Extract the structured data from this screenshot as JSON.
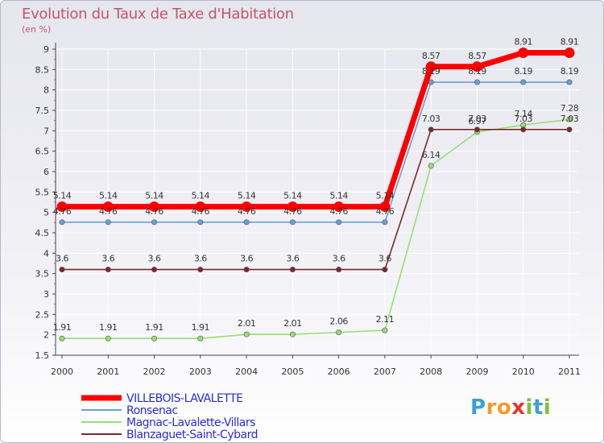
{
  "title": "Evolution du Taux de Taxe d'Habitation",
  "unit_label": "(en %)",
  "logo": {
    "text": "Proxiti",
    "letters": [
      "P",
      "r",
      "o",
      "x",
      "i",
      "t",
      "i"
    ],
    "colors": [
      "#3aa0d8",
      "#f39a2a",
      "#f39a2a",
      "#e8342a",
      "#7bbf3c",
      "#3aa0d8",
      "#7bbf3c"
    ]
  },
  "colors": {
    "villebois": "#ff0000",
    "ronsenac": "#6aa0d0",
    "magnac": "#99dd77",
    "blanzaguet": "#7a2a2a",
    "axis_text": "#333333",
    "grid": "#ffffff"
  },
  "chart_data": {
    "type": "line",
    "title": "Evolution du Taux de Taxe d'Habitation",
    "ylabel": "(en %)",
    "xlabel": "",
    "ylim": [
      1.5,
      9
    ],
    "yticks": [
      "1.5",
      "2",
      "2.5",
      "3",
      "3.5",
      "4",
      "4.5",
      "5",
      "5.5",
      "6",
      "6.5",
      "7",
      "7.5",
      "8",
      "8.5",
      "9"
    ],
    "categories": [
      "2000",
      "2001",
      "2002",
      "2003",
      "2004",
      "2005",
      "2006",
      "2007",
      "2008",
      "2009",
      "2010",
      "2011"
    ],
    "series": [
      {
        "name": "VILLEBOIS-LAVALETTE",
        "color": "#ff0000",
        "values": [
          5.14,
          5.14,
          5.14,
          5.14,
          5.14,
          5.14,
          5.14,
          5.14,
          8.57,
          8.57,
          8.91,
          8.91
        ],
        "labels": [
          "5.14",
          "5.14",
          "5.14",
          "5.14",
          "5.14",
          "5.14",
          "5.14",
          "5.14",
          "8.57",
          "8.57",
          "8.91",
          "8.91"
        ]
      },
      {
        "name": "Ronsenac",
        "color": "#6aa0d0",
        "values": [
          4.76,
          4.76,
          4.76,
          4.76,
          4.76,
          4.76,
          4.76,
          4.76,
          8.19,
          8.19,
          8.19,
          8.19
        ],
        "labels": [
          "4.76",
          "4.76",
          "4.76",
          "4.76",
          "4.76",
          "4.76",
          "4.76",
          "4.76",
          "8.19",
          "8.19",
          "8.19",
          "8.19"
        ]
      },
      {
        "name": "Magnac-Lavalette-Villars",
        "color": "#99dd77",
        "values": [
          1.91,
          1.91,
          1.91,
          1.91,
          2.01,
          2.01,
          2.06,
          2.11,
          6.14,
          6.97,
          7.14,
          7.28
        ],
        "labels": [
          "1.91",
          "1.91",
          "1.91",
          "1.91",
          "2.01",
          "2.01",
          "2.06",
          "2.11",
          "6.14",
          "6.97",
          "7.14",
          "7.28"
        ]
      },
      {
        "name": "Blanzaguet-Saint-Cybard",
        "color": "#7a2a2a",
        "values": [
          3.6,
          3.6,
          3.6,
          3.6,
          3.6,
          3.6,
          3.6,
          3.6,
          7.03,
          7.03,
          7.03,
          7.03
        ],
        "labels": [
          "3.6",
          "3.6",
          "3.6",
          "3.6",
          "3.6",
          "3.6",
          "3.6",
          "3.6",
          "7.03",
          "7.03",
          "7.03",
          "7.03"
        ]
      }
    ],
    "legend_position": "bottom-left",
    "grid": true
  }
}
